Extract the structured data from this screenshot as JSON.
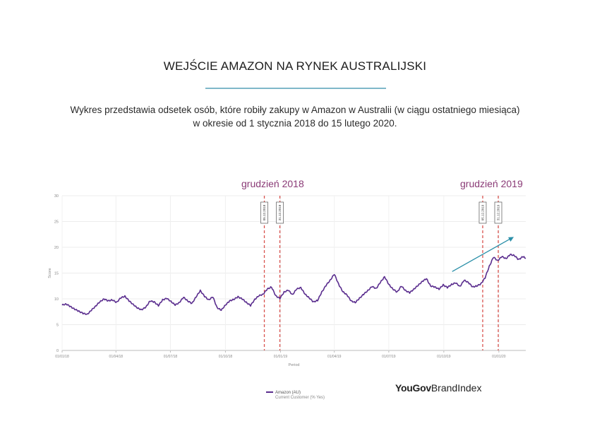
{
  "title": "WEJŚCIE AMAZON NA RYNEK AUSTRALIJSKI",
  "description_line1": "Wykres przedstawia odsetek osób, które robiły zakupy w Amazon w Australii (w ciągu ostatniego miesiąca)",
  "description_line2": "w okresie od 1 stycznia 2018 do 15 lutego 2020.",
  "annotations": {
    "dec_2018": "grudzień 2018",
    "dec_2019": "grudzień 2019"
  },
  "legend": {
    "series": "Amazon (AU)",
    "sub": "Current Customer (% Yes)"
  },
  "logo": {
    "bold": "YouGov",
    "light": "BrandIndex"
  },
  "colors": {
    "series": "#5a2d8e",
    "marker": "#d9534f",
    "annotation": "#8a3a76",
    "arrow": "#2a8fa8",
    "rule": "#7fb8c9"
  },
  "chart_data": {
    "type": "line",
    "xlabel": "Period",
    "ylabel": "Score",
    "ylim": [
      0,
      30
    ],
    "yticks": [
      0,
      5,
      10,
      15,
      20,
      25,
      30
    ],
    "xlim": [
      "2018-01-01",
      "2020-02-15"
    ],
    "xticks": [
      {
        "date": "2018-01-01",
        "label": "01/01/18"
      },
      {
        "date": "2018-04-01",
        "label": "01/04/18"
      },
      {
        "date": "2018-07-01",
        "label": "01/07/18"
      },
      {
        "date": "2018-10-01",
        "label": "01/10/18"
      },
      {
        "date": "2019-01-01",
        "label": "01/01/19"
      },
      {
        "date": "2019-04-01",
        "label": "01/04/19"
      },
      {
        "date": "2019-07-01",
        "label": "01/07/19"
      },
      {
        "date": "2019-10-01",
        "label": "01/10/19"
      },
      {
        "date": "2020-01-01",
        "label": "01/01/20"
      }
    ],
    "grid": true,
    "markers": [
      {
        "date": "2018-12-05",
        "label": "05.12.2018"
      },
      {
        "date": "2018-12-31",
        "label": "31.12.2018"
      },
      {
        "date": "2019-12-05",
        "label": "05.12.2019"
      },
      {
        "date": "2019-12-31",
        "label": "31.12.2019"
      }
    ],
    "trend_arrow": {
      "from": [
        "2019-10-15",
        15.3
      ],
      "to": [
        "2020-01-26",
        22
      ]
    },
    "series": [
      {
        "name": "Amazon (AU)",
        "x": [
          "2018-01-01",
          "2018-01-08",
          "2018-01-15",
          "2018-01-22",
          "2018-01-29",
          "2018-02-05",
          "2018-02-12",
          "2018-02-19",
          "2018-02-26",
          "2018-03-05",
          "2018-03-12",
          "2018-03-19",
          "2018-03-26",
          "2018-04-02",
          "2018-04-09",
          "2018-04-16",
          "2018-04-23",
          "2018-04-30",
          "2018-05-07",
          "2018-05-14",
          "2018-05-21",
          "2018-05-28",
          "2018-06-04",
          "2018-06-11",
          "2018-06-18",
          "2018-06-25",
          "2018-07-02",
          "2018-07-09",
          "2018-07-16",
          "2018-07-23",
          "2018-07-30",
          "2018-08-06",
          "2018-08-13",
          "2018-08-20",
          "2018-08-27",
          "2018-09-03",
          "2018-09-10",
          "2018-09-17",
          "2018-09-24",
          "2018-10-01",
          "2018-10-08",
          "2018-10-15",
          "2018-10-22",
          "2018-10-29",
          "2018-11-05",
          "2018-11-12",
          "2018-11-19",
          "2018-11-26",
          "2018-12-03",
          "2018-12-10",
          "2018-12-17",
          "2018-12-24",
          "2018-12-31",
          "2019-01-07",
          "2019-01-14",
          "2019-01-21",
          "2019-01-28",
          "2019-02-04",
          "2019-02-11",
          "2019-02-18",
          "2019-02-25",
          "2019-03-04",
          "2019-03-11",
          "2019-03-18",
          "2019-03-25",
          "2019-04-01",
          "2019-04-08",
          "2019-04-15",
          "2019-04-22",
          "2019-04-29",
          "2019-05-06",
          "2019-05-13",
          "2019-05-20",
          "2019-05-27",
          "2019-06-03",
          "2019-06-10",
          "2019-06-17",
          "2019-06-24",
          "2019-07-01",
          "2019-07-08",
          "2019-07-15",
          "2019-07-22",
          "2019-07-29",
          "2019-08-05",
          "2019-08-12",
          "2019-08-19",
          "2019-08-26",
          "2019-09-02",
          "2019-09-09",
          "2019-09-16",
          "2019-09-23",
          "2019-09-30",
          "2019-10-07",
          "2019-10-14",
          "2019-10-21",
          "2019-10-28",
          "2019-11-04",
          "2019-11-11",
          "2019-11-18",
          "2019-11-25",
          "2019-12-02",
          "2019-12-09",
          "2019-12-16",
          "2019-12-23",
          "2019-12-30",
          "2020-01-06",
          "2020-01-13",
          "2020-01-20",
          "2020-01-27",
          "2020-02-03",
          "2020-02-10",
          "2020-02-15"
        ],
        "y": [
          8.8,
          9.0,
          8.5,
          8.0,
          7.6,
          7.2,
          7.0,
          7.8,
          8.6,
          9.4,
          10.0,
          9.6,
          9.8,
          9.3,
          10.2,
          10.5,
          9.6,
          8.9,
          8.2,
          7.9,
          8.4,
          9.6,
          9.4,
          8.7,
          9.8,
          10.1,
          9.5,
          8.8,
          9.3,
          10.3,
          9.6,
          9.1,
          10.4,
          11.6,
          10.5,
          9.8,
          10.4,
          8.3,
          7.8,
          8.8,
          9.6,
          9.9,
          10.4,
          10.0,
          9.3,
          8.7,
          9.9,
          10.6,
          10.9,
          11.9,
          12.3,
          10.6,
          10.1,
          11.3,
          11.7,
          10.8,
          11.9,
          12.2,
          10.9,
          10.2,
          9.4,
          9.7,
          11.3,
          12.6,
          13.6,
          14.8,
          12.9,
          11.4,
          10.8,
          9.6,
          9.3,
          10.1,
          10.9,
          11.6,
          12.4,
          12.0,
          13.2,
          14.3,
          12.8,
          11.9,
          11.3,
          12.5,
          11.6,
          11.2,
          11.9,
          12.6,
          13.4,
          13.9,
          12.5,
          12.3,
          11.9,
          12.7,
          12.2,
          12.8,
          13.1,
          12.4,
          13.6,
          13.2,
          12.3,
          12.5,
          12.9,
          14.1,
          16.3,
          18.1,
          17.4,
          18.2,
          17.8,
          18.6,
          18.4,
          17.6,
          18.2,
          17.9
        ]
      }
    ]
  }
}
